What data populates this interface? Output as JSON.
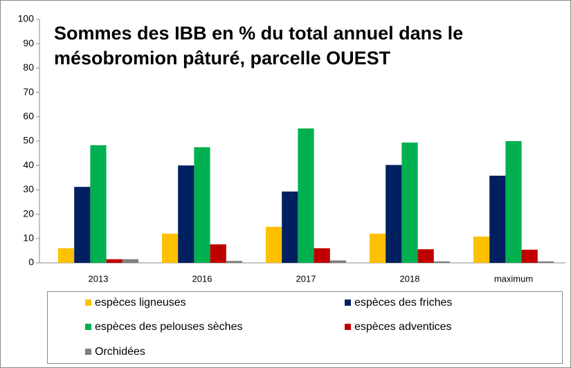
{
  "chart_data": {
    "type": "bar",
    "title": "Sommes des IBB en % du total annuel dans le mésobromion pâturé, parcelle OUEST",
    "categories": [
      "2013",
      "2016",
      "2017",
      "2018",
      "maximum"
    ],
    "series": [
      {
        "name": "espèces ligneuses",
        "color": "#ffc000",
        "values": [
          6,
          12,
          14.8,
          12,
          10.8
        ]
      },
      {
        "name": "espèces des friches",
        "color": "#002060",
        "values": [
          31.2,
          40,
          29.3,
          40.2,
          35.8
        ]
      },
      {
        "name": "espèces des pelouses sèches",
        "color": "#00b050",
        "values": [
          48.3,
          47.5,
          55.2,
          49.4,
          50
        ]
      },
      {
        "name": "espèces adventices",
        "color": "#c00000",
        "values": [
          1.5,
          7.6,
          6,
          5.6,
          5.4
        ]
      },
      {
        "name": "Orchidées",
        "color": "#7f7f7f",
        "values": [
          1.5,
          0.8,
          1,
          0.6,
          0.6
        ]
      }
    ],
    "ylim": [
      0,
      100
    ],
    "yticks": [
      0,
      10,
      20,
      30,
      40,
      50,
      60,
      70,
      80,
      90,
      100
    ],
    "grid": false,
    "legend": "bottom"
  }
}
